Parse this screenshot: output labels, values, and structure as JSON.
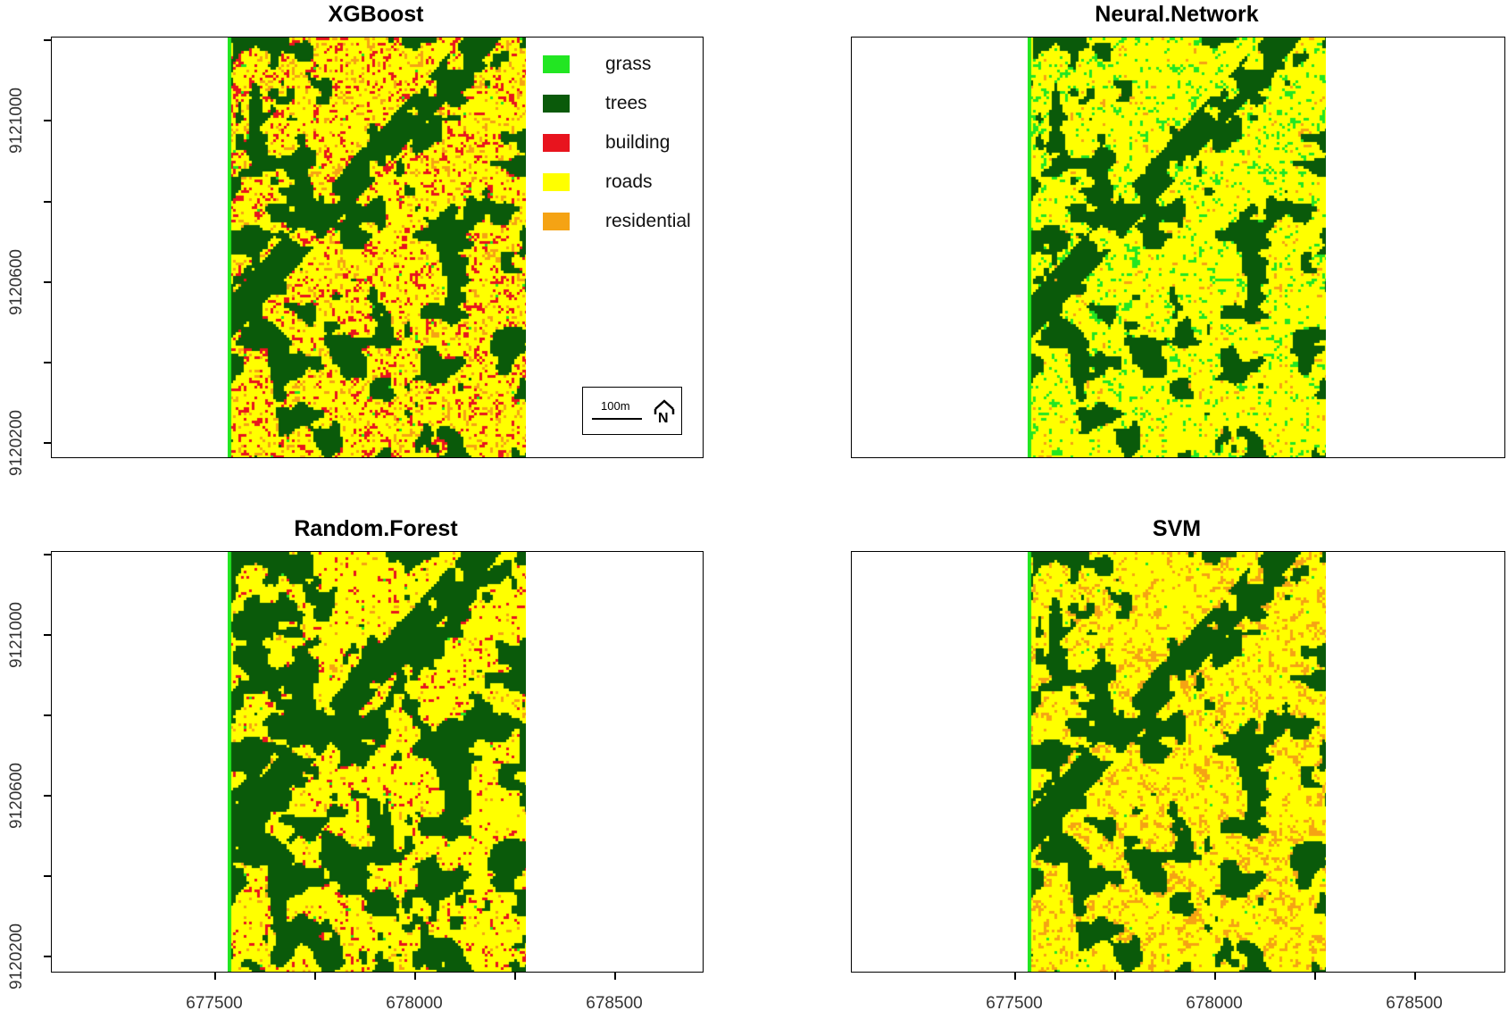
{
  "colors": {
    "grass": "#22e622",
    "trees": "#0a5a0a",
    "building": "#e8141e",
    "roads": "#ffff00",
    "residential": "#f5a314"
  },
  "legend": [
    {
      "key": "grass",
      "label": "grass"
    },
    {
      "key": "trees",
      "label": "trees"
    },
    {
      "key": "building",
      "label": "building"
    },
    {
      "key": "roads",
      "label": "roads"
    },
    {
      "key": "residential",
      "label": "residential"
    }
  ],
  "scalebar": {
    "label": "100m",
    "north_label": "N"
  },
  "y_ticks": [
    "9121000",
    "9120600",
    "9120200"
  ],
  "x_ticks": [
    "677500",
    "678000",
    "678500"
  ],
  "panels": [
    {
      "id": "xgboost",
      "title": "XGBoost",
      "weights": [
        0.06,
        0.3,
        0.16,
        0.3,
        0.18
      ]
    },
    {
      "id": "neural-network",
      "title": "Neural.Network",
      "weights": [
        0.2,
        0.28,
        0.0,
        0.4,
        0.12
      ]
    },
    {
      "id": "random-forest",
      "title": "Random.Forest",
      "weights": [
        0.05,
        0.36,
        0.11,
        0.36,
        0.12
      ]
    },
    {
      "id": "svm",
      "title": "SVM",
      "weights": [
        0.06,
        0.3,
        0.0,
        0.4,
        0.24
      ]
    }
  ]
}
